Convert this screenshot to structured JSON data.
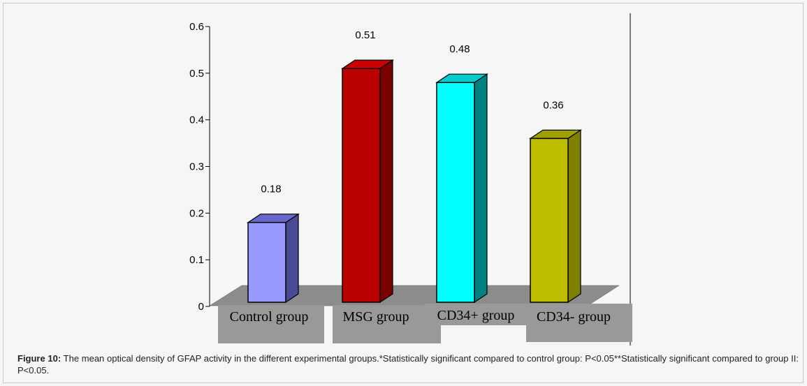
{
  "chart_data": {
    "type": "bar",
    "categories": [
      "Control group",
      "MSG group",
      "CD34+ group",
      "CD34- group"
    ],
    "values": [
      0.18,
      0.51,
      0.48,
      0.36
    ],
    "data_labels": [
      "0.18",
      "0.51",
      "0.48",
      "0.36"
    ],
    "yticks": [
      "0",
      "0.1",
      "0.2",
      "0.3",
      "0.4",
      "0.5",
      "0.6"
    ],
    "ylim": [
      0,
      0.6
    ],
    "title": "",
    "xlabel": "",
    "ylabel": "",
    "grid": false,
    "legend": "none",
    "style": "3d-column",
    "colors": {
      "front": [
        "#9999ff",
        "#bb0000",
        "#00ffff",
        "#bfbf00"
      ],
      "side": [
        "#4a4a96",
        "#7a0000",
        "#008080",
        "#7f7f00"
      ],
      "top": [
        "#6666cc",
        "#cc0000",
        "#00cccc",
        "#9f9f00"
      ],
      "floor": "#8c8c8c",
      "label_box": "#999999"
    }
  },
  "caption": {
    "label": "Figure 10:",
    "text": " The mean optical density of GFAP activity in the different experimental groups.*Statistically significant compared to control group: P<0.05**Statistically significant compared to group II: P<0.05."
  }
}
